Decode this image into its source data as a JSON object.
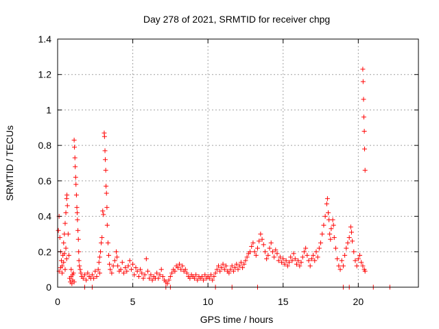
{
  "chart_data": {
    "type": "scatter",
    "title": "Day 278 of 2021, SRMTID for receiver chpg",
    "xlabel": "GPS time / hours",
    "ylabel": "SRMTID / TECUs",
    "xlim": [
      0,
      24
    ],
    "ylim": [
      0,
      1.4
    ],
    "xticks": [
      0,
      5,
      10,
      15,
      20
    ],
    "xtick_labels": [
      "0",
      "5",
      "10",
      "15",
      "20"
    ],
    "yticks": [
      0,
      0.2,
      0.4,
      0.6,
      0.8,
      1.0,
      1.2,
      1.4
    ],
    "ytick_labels": [
      "0",
      "0.2",
      "0.4",
      "0.6",
      "0.8",
      "1",
      "1.2",
      "1.4"
    ],
    "grid": true,
    "marker": "+",
    "color": "#ff0000",
    "series": [
      {
        "name": "SRMTID",
        "points": [
          [
            0.05,
            0.32
          ],
          [
            0.1,
            0.4
          ],
          [
            0.15,
            0.28
          ],
          [
            0.2,
            0.2
          ],
          [
            0.25,
            0.15
          ],
          [
            0.3,
            0.12
          ],
          [
            0.35,
            0.18
          ],
          [
            0.4,
            0.25
          ],
          [
            0.45,
            0.3
          ],
          [
            0.5,
            0.36
          ],
          [
            0.55,
            0.42
          ],
          [
            0.6,
            0.5
          ],
          [
            0.62,
            0.52
          ],
          [
            0.65,
            0.46
          ],
          [
            0.7,
            0.3
          ],
          [
            0.75,
            0.18
          ],
          [
            0.1,
            0.09
          ],
          [
            0.2,
            0.11
          ],
          [
            0.3,
            0.08
          ],
          [
            0.4,
            0.14
          ],
          [
            0.5,
            0.1
          ],
          [
            0.6,
            0.16
          ],
          [
            0.55,
            0.22
          ],
          [
            0.45,
            0.19
          ],
          [
            0.8,
            0.05
          ],
          [
            0.85,
            0.03
          ],
          [
            0.9,
            0.06
          ],
          [
            0.95,
            0.02
          ],
          [
            1.0,
            0.04
          ],
          [
            1.05,
            0.08
          ],
          [
            1.1,
            0.03
          ],
          [
            0.9,
            0.1
          ],
          [
            1.0,
            0.07
          ],
          [
            1.1,
            0.83
          ],
          [
            1.12,
            0.79
          ],
          [
            1.15,
            0.73
          ],
          [
            1.17,
            0.68
          ],
          [
            1.2,
            0.62
          ],
          [
            1.22,
            0.58
          ],
          [
            1.25,
            0.52
          ],
          [
            1.28,
            0.45
          ],
          [
            1.3,
            0.42
          ],
          [
            1.32,
            0.38
          ],
          [
            1.35,
            0.32
          ],
          [
            1.38,
            0.27
          ],
          [
            1.4,
            0.2
          ],
          [
            1.42,
            0.15
          ],
          [
            1.45,
            0.12
          ],
          [
            1.5,
            0.1
          ],
          [
            1.55,
            0.08
          ],
          [
            1.6,
            0.06
          ],
          [
            1.7,
            0.05
          ],
          [
            1.8,
            0.07
          ],
          [
            1.9,
            0.04
          ],
          [
            2.0,
            0.08
          ],
          [
            2.1,
            0.06
          ],
          [
            2.2,
            0.05
          ],
          [
            2.3,
            0.07
          ],
          [
            2.4,
            0.05
          ],
          [
            2.5,
            0.09
          ],
          [
            2.6,
            0.06
          ],
          [
            2.7,
            0.1
          ],
          [
            2.8,
            0.08
          ],
          [
            2.75,
            0.14
          ],
          [
            2.8,
            0.17
          ],
          [
            2.85,
            0.2
          ],
          [
            2.9,
            0.25
          ],
          [
            2.95,
            0.28
          ],
          [
            3.0,
            0.43
          ],
          [
            3.05,
            0.41
          ],
          [
            3.1,
            0.87
          ],
          [
            3.12,
            0.85
          ],
          [
            3.15,
            0.77
          ],
          [
            3.17,
            0.72
          ],
          [
            3.2,
            0.66
          ],
          [
            3.22,
            0.57
          ],
          [
            3.25,
            0.53
          ],
          [
            3.28,
            0.45
          ],
          [
            3.3,
            0.35
          ],
          [
            3.35,
            0.25
          ],
          [
            3.4,
            0.18
          ],
          [
            3.45,
            0.13
          ],
          [
            3.5,
            0.1
          ],
          [
            3.6,
            0.08
          ],
          [
            3.7,
            0.12
          ],
          [
            3.8,
            0.15
          ],
          [
            3.9,
            0.2
          ],
          [
            3.95,
            0.17
          ],
          [
            4.0,
            0.12
          ],
          [
            4.1,
            0.09
          ],
          [
            4.2,
            0.1
          ],
          [
            4.3,
            0.14
          ],
          [
            4.4,
            0.08
          ],
          [
            4.5,
            0.11
          ],
          [
            4.6,
            0.09
          ],
          [
            4.7,
            0.12
          ],
          [
            4.8,
            0.15
          ],
          [
            4.9,
            0.1
          ],
          [
            5.0,
            0.13
          ],
          [
            5.1,
            0.07
          ],
          [
            5.2,
            0.11
          ],
          [
            5.3,
            0.09
          ],
          [
            5.4,
            0.06
          ],
          [
            5.5,
            0.1
          ],
          [
            5.6,
            0.08
          ],
          [
            5.7,
            0.05
          ],
          [
            5.8,
            0.07
          ],
          [
            5.9,
            0.16
          ],
          [
            6.0,
            0.09
          ],
          [
            6.1,
            0.05
          ],
          [
            6.2,
            0.07
          ],
          [
            6.3,
            0.04
          ],
          [
            6.4,
            0.06
          ],
          [
            6.5,
            0.05
          ],
          [
            6.6,
            0.08
          ],
          [
            6.7,
            0.05
          ],
          [
            6.8,
            0.07
          ],
          [
            6.9,
            0.1
          ],
          [
            7.0,
            0.06
          ],
          [
            7.1,
            0.04
          ],
          [
            7.2,
            0.03
          ],
          [
            7.3,
            0.02
          ],
          [
            7.4,
            0.04
          ],
          [
            7.5,
            0.06
          ],
          [
            7.6,
            0.08
          ],
          [
            7.7,
            0.1
          ],
          [
            7.8,
            0.09
          ],
          [
            7.9,
            0.12
          ],
          [
            8.0,
            0.11
          ],
          [
            8.1,
            0.13
          ],
          [
            8.2,
            0.1
          ],
          [
            8.3,
            0.12
          ],
          [
            8.4,
            0.09
          ],
          [
            8.5,
            0.1
          ],
          [
            8.6,
            0.08
          ],
          [
            8.7,
            0.06
          ],
          [
            8.8,
            0.05
          ],
          [
            8.9,
            0.07
          ],
          [
            9.0,
            0.06
          ],
          [
            9.1,
            0.05
          ],
          [
            9.2,
            0.07
          ],
          [
            9.3,
            0.04
          ],
          [
            9.4,
            0.06
          ],
          [
            9.5,
            0.05
          ],
          [
            9.6,
            0.06
          ],
          [
            9.7,
            0.04
          ],
          [
            9.8,
            0.07
          ],
          [
            9.9,
            0.05
          ],
          [
            10.0,
            0.06
          ],
          [
            10.1,
            0.05
          ],
          [
            10.2,
            0.07
          ],
          [
            10.3,
            0.04
          ],
          [
            10.4,
            0.06
          ],
          [
            10.5,
            0.08
          ],
          [
            10.6,
            0.1
          ],
          [
            10.7,
            0.12
          ],
          [
            10.8,
            0.09
          ],
          [
            10.9,
            0.11
          ],
          [
            11.0,
            0.13
          ],
          [
            11.1,
            0.1
          ],
          [
            11.2,
            0.12
          ],
          [
            11.3,
            0.09
          ],
          [
            11.4,
            0.08
          ],
          [
            11.5,
            0.1
          ],
          [
            11.6,
            0.12
          ],
          [
            11.7,
            0.09
          ],
          [
            11.8,
            0.11
          ],
          [
            11.9,
            0.13
          ],
          [
            12.0,
            0.1
          ],
          [
            12.1,
            0.12
          ],
          [
            12.2,
            0.14
          ],
          [
            12.3,
            0.11
          ],
          [
            12.4,
            0.13
          ],
          [
            12.5,
            0.15
          ],
          [
            12.6,
            0.17
          ],
          [
            12.7,
            0.19
          ],
          [
            12.8,
            0.2
          ],
          [
            12.9,
            0.23
          ],
          [
            13.0,
            0.25
          ],
          [
            13.1,
            0.2
          ],
          [
            13.2,
            0.18
          ],
          [
            13.3,
            0.22
          ],
          [
            13.4,
            0.26
          ],
          [
            13.5,
            0.3
          ],
          [
            13.6,
            0.27
          ],
          [
            13.7,
            0.24
          ],
          [
            13.8,
            0.2
          ],
          [
            13.9,
            0.16
          ],
          [
            14.0,
            0.18
          ],
          [
            14.1,
            0.22
          ],
          [
            14.2,
            0.25
          ],
          [
            14.3,
            0.2
          ],
          [
            14.4,
            0.17
          ],
          [
            14.5,
            0.21
          ],
          [
            14.6,
            0.19
          ],
          [
            14.7,
            0.15
          ],
          [
            14.8,
            0.17
          ],
          [
            14.9,
            0.14
          ],
          [
            15.0,
            0.16
          ],
          [
            15.1,
            0.13
          ],
          [
            15.2,
            0.15
          ],
          [
            15.3,
            0.12
          ],
          [
            15.4,
            0.14
          ],
          [
            15.5,
            0.17
          ],
          [
            15.6,
            0.15
          ],
          [
            15.7,
            0.19
          ],
          [
            15.8,
            0.16
          ],
          [
            15.9,
            0.13
          ],
          [
            16.0,
            0.15
          ],
          [
            16.1,
            0.12
          ],
          [
            16.2,
            0.14
          ],
          [
            16.3,
            0.17
          ],
          [
            16.4,
            0.2
          ],
          [
            16.5,
            0.22
          ],
          [
            16.6,
            0.18
          ],
          [
            16.7,
            0.15
          ],
          [
            16.8,
            0.12
          ],
          [
            16.9,
            0.16
          ],
          [
            17.0,
            0.18
          ],
          [
            17.1,
            0.15
          ],
          [
            17.2,
            0.2
          ],
          [
            17.3,
            0.17
          ],
          [
            17.4,
            0.22
          ],
          [
            17.5,
            0.25
          ],
          [
            17.6,
            0.3
          ],
          [
            17.7,
            0.35
          ],
          [
            17.8,
            0.4
          ],
          [
            17.9,
            0.47
          ],
          [
            17.95,
            0.5
          ],
          [
            18.0,
            0.42
          ],
          [
            18.05,
            0.38
          ],
          [
            18.1,
            0.3
          ],
          [
            18.15,
            0.27
          ],
          [
            18.2,
            0.33
          ],
          [
            18.3,
            0.38
          ],
          [
            18.35,
            0.35
          ],
          [
            18.4,
            0.28
          ],
          [
            18.5,
            0.22
          ],
          [
            18.6,
            0.16
          ],
          [
            18.7,
            0.12
          ],
          [
            18.8,
            0.1
          ],
          [
            18.9,
            0.15
          ],
          [
            19.0,
            0.12
          ],
          [
            19.1,
            0.18
          ],
          [
            19.2,
            0.22
          ],
          [
            19.3,
            0.25
          ],
          [
            19.4,
            0.28
          ],
          [
            19.5,
            0.34
          ],
          [
            19.55,
            0.31
          ],
          [
            19.6,
            0.26
          ],
          [
            19.7,
            0.2
          ],
          [
            19.8,
            0.15
          ],
          [
            19.9,
            0.12
          ],
          [
            20.0,
            0.16
          ],
          [
            20.1,
            0.18
          ],
          [
            20.2,
            0.14
          ],
          [
            20.3,
            0.12
          ],
          [
            20.4,
            0.1
          ],
          [
            20.45,
            0.09
          ],
          [
            20.3,
            1.23
          ],
          [
            20.32,
            1.16
          ],
          [
            20.35,
            1.06
          ],
          [
            20.37,
            0.96
          ],
          [
            20.4,
            0.88
          ],
          [
            20.42,
            0.78
          ],
          [
            20.45,
            0.66
          ],
          [
            1.8,
            0.0
          ],
          [
            2.3,
            0.0
          ],
          [
            7.2,
            0.0
          ],
          [
            7.5,
            0.0
          ],
          [
            10.5,
            0.0
          ],
          [
            11.6,
            0.0
          ],
          [
            13.3,
            0.0
          ],
          [
            19.0,
            0.0
          ],
          [
            19.4,
            0.0
          ],
          [
            21.0,
            0.0
          ],
          [
            22.1,
            0.0
          ]
        ]
      }
    ]
  }
}
